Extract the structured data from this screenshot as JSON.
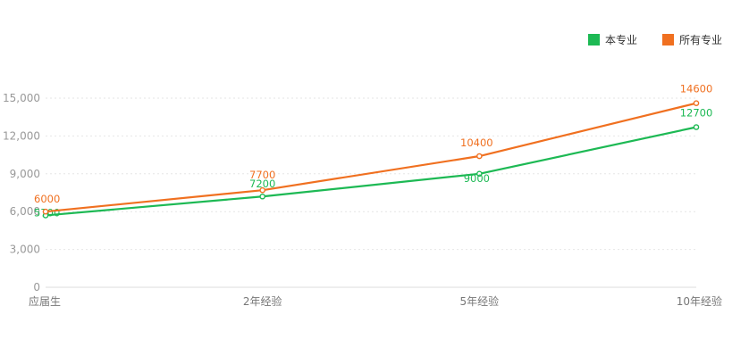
{
  "chart_data": {
    "type": "line",
    "categories": [
      "应届生",
      "2年经验",
      "5年经验",
      "10年经验"
    ],
    "series": [
      {
        "name": "本专业",
        "values": [
          5700,
          7200,
          9000,
          12700
        ],
        "color": "#1db954"
      },
      {
        "name": "所有专业",
        "values": [
          6000,
          7700,
          10400,
          14600
        ],
        "color": "#f07020"
      }
    ],
    "yticks": [
      "0",
      "3,000",
      "6,000",
      "9,000",
      "12,000",
      "15,000"
    ],
    "ytick_values": [
      0,
      3000,
      6000,
      9000,
      12000,
      15000
    ],
    "ylim": [
      0,
      15000
    ],
    "grid": true,
    "legend_position": "top-right"
  }
}
